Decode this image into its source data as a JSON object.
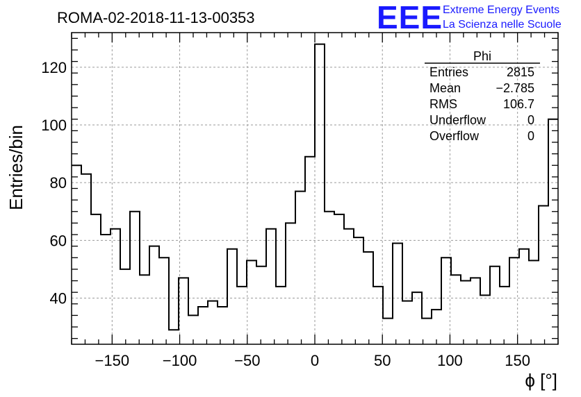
{
  "chart_data": {
    "type": "histogram",
    "title": "ROMA-02-2018-11-13-00353",
    "xlabel": "ϕ [°]",
    "ylabel": "Entries/bin",
    "xlim": [
      -180,
      180
    ],
    "ylim": [
      24,
      132
    ],
    "bin_width": 7.2,
    "x_ticks": [
      -150,
      -100,
      -50,
      0,
      50,
      100,
      150
    ],
    "y_ticks": [
      40,
      60,
      80,
      100,
      120
    ],
    "grid": true,
    "values": [
      86,
      83,
      69,
      62,
      64,
      50,
      70,
      48,
      58,
      54,
      29,
      47,
      34,
      37,
      39,
      37,
      57,
      44,
      53,
      51,
      64,
      44,
      66,
      77,
      89,
      128,
      70,
      69,
      64,
      61,
      56,
      44,
      33,
      59,
      39,
      42,
      33,
      36,
      54,
      48,
      46,
      47,
      41,
      51,
      44,
      54,
      57,
      53,
      72,
      102
    ]
  },
  "stats_box": {
    "title": "Phi",
    "rows": [
      {
        "label": "Entries",
        "value": "2815"
      },
      {
        "label": "Mean",
        "value": "−2.785"
      },
      {
        "label": "RMS",
        "value": "106.7"
      },
      {
        "label": "Underflow",
        "value": "0"
      },
      {
        "label": "Overflow",
        "value": "0"
      }
    ]
  },
  "logo": {
    "mark": "EEE",
    "line1": "Extreme Energy Events",
    "line2": "La Scienza nelle Scuole",
    "color": "#1a1aff"
  }
}
